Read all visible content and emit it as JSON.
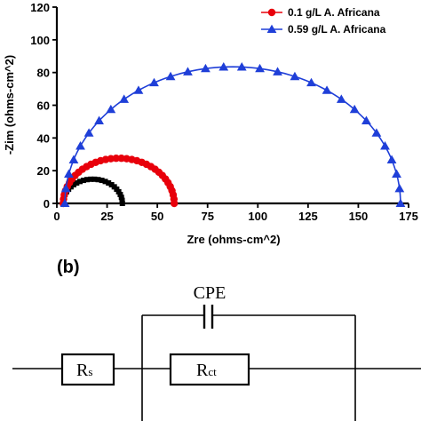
{
  "chart_data": {
    "type": "scatter",
    "xlabel": "Zre (ohms-cm^2)",
    "ylabel": "-Zim (ohms-cm^2)",
    "xlim": [
      0,
      175
    ],
    "ylim": [
      0,
      120
    ],
    "xticks": [
      0,
      25,
      50,
      75,
      100,
      125,
      150,
      175
    ],
    "yticks": [
      0,
      20,
      40,
      60,
      80,
      100,
      120
    ],
    "grid": false,
    "legend_position": "top-right",
    "series": [
      {
        "name": "",
        "color": "#000000",
        "marker": "square",
        "center": [
          17.8,
          0
        ],
        "radius": 14.8,
        "points": 26
      },
      {
        "name": "0.1 g/L A. Africana",
        "color": "#e8000b",
        "marker": "circle",
        "center": [
          30.8,
          0
        ],
        "radius": 27.6,
        "points": 34
      },
      {
        "name": "0.59 g/L A. Africana",
        "color": "#1f3fd8",
        "marker": "triangle",
        "center": [
          87.5,
          0
        ],
        "radius": 83.5,
        "points": 30
      }
    ]
  },
  "panel_b": {
    "label": "(b)",
    "components": {
      "cpe": "CPE",
      "rs_main": "R",
      "rs_sub": "s",
      "rct_main": "R",
      "rct_sub": "ct"
    }
  }
}
